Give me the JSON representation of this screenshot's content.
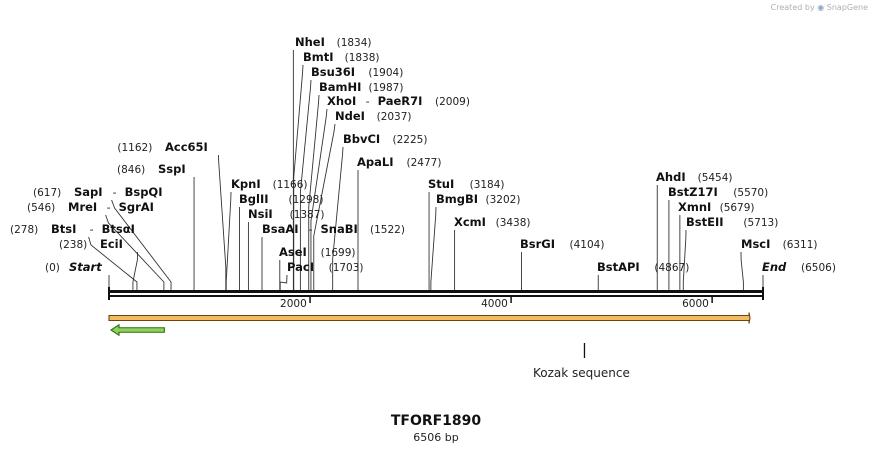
{
  "watermark": {
    "prefix": "Created by",
    "brand": "SnapGene"
  },
  "plasmid": {
    "name": "TFORF1890",
    "size_label": "6506 bp",
    "length": 6506
  },
  "ends": {
    "start_label": "Start",
    "start_pos": "(0)",
    "end_label": "End",
    "end_pos": "(6506)"
  },
  "ticks": [
    {
      "pos": 2000,
      "label": "2000"
    },
    {
      "pos": 4000,
      "label": "4000"
    },
    {
      "pos": 6000,
      "label": "6000"
    }
  ],
  "sites": [
    {
      "name": "NheI",
      "pos": 1834,
      "pos_label": "(1834)"
    },
    {
      "name": "BmtI",
      "pos": 1838,
      "pos_label": "(1838)"
    },
    {
      "name": "Bsu36I",
      "pos": 1904,
      "pos_label": "(1904)"
    },
    {
      "name": "BamHI",
      "pos": 1987,
      "pos_label": "(1987)"
    },
    {
      "name": "XhoI",
      "name2": "PaeR7I",
      "pos": 2009,
      "pos_label": "(2009)"
    },
    {
      "name": "NdeI",
      "pos": 2037,
      "pos_label": "(2037)"
    },
    {
      "name": "BbvCI",
      "pos": 2225,
      "pos_label": "(2225)"
    },
    {
      "name": "ApaLI",
      "pos": 2477,
      "pos_label": "(2477)"
    },
    {
      "name": "Acc65I",
      "pos": 1162,
      "pos_label": "(1162)"
    },
    {
      "name": "SspI",
      "pos": 846,
      "pos_label": "(846)"
    },
    {
      "name": "SapI",
      "name2": "BspQI",
      "pos": 617,
      "pos_label": "(617)"
    },
    {
      "name": "MreI",
      "name2": "SgrAI",
      "pos": 546,
      "pos_label": "(546)"
    },
    {
      "name": "BtsI",
      "name2": "BtsαI",
      "pos": 278,
      "pos_label": "(278)"
    },
    {
      "name": "EciI",
      "pos": 238,
      "pos_label": "(238)"
    },
    {
      "name": "KpnI",
      "pos": 1166,
      "pos_label": "(1166)"
    },
    {
      "name": "BglII",
      "pos": 1298,
      "pos_label": "(1298)"
    },
    {
      "name": "NsiI",
      "pos": 1387,
      "pos_label": "(1387)"
    },
    {
      "name": "BsaAI",
      "name2": "SnaBI",
      "pos": 1522,
      "pos_label": "(1522)"
    },
    {
      "name": "AseI",
      "pos": 1699,
      "pos_label": "(1699)"
    },
    {
      "name": "PacI",
      "pos": 1703,
      "pos_label": "(1703)"
    },
    {
      "name": "StuI",
      "pos": 3184,
      "pos_label": "(3184)"
    },
    {
      "name": "BmgBI",
      "pos": 3202,
      "pos_label": "(3202)"
    },
    {
      "name": "XcmI",
      "pos": 3438,
      "pos_label": "(3438)"
    },
    {
      "name": "BsrGI",
      "pos": 4104,
      "pos_label": "(4104)"
    },
    {
      "name": "BstAPI",
      "pos": 4867,
      "pos_label": "(4867)"
    },
    {
      "name": "AhdI",
      "pos": 5454,
      "pos_label": "(5454)"
    },
    {
      "name": "BstZ17I",
      "pos": 5570,
      "pos_label": "(5570)"
    },
    {
      "name": "XmnI",
      "pos": 5679,
      "pos_label": "(5679)"
    },
    {
      "name": "BstEII",
      "pos": 5713,
      "pos_label": "(5713)"
    },
    {
      "name": "MscI",
      "pos": 6311,
      "pos_label": "(6311)"
    }
  ],
  "features": [
    {
      "name": "orange-orf",
      "start": 0,
      "end": 6506,
      "direction": "forward",
      "fill": "#f3bc62",
      "stroke": "#6b4410"
    },
    {
      "name": "green-feature",
      "start": 0,
      "end": 680,
      "direction": "reverse",
      "fill": "#8fd35a",
      "stroke": "#2e6b12"
    }
  ],
  "kozak": {
    "label": "Kozak sequence",
    "pos": 4730
  },
  "colors": {
    "backbone": "#111111",
    "leader": "#333333"
  }
}
